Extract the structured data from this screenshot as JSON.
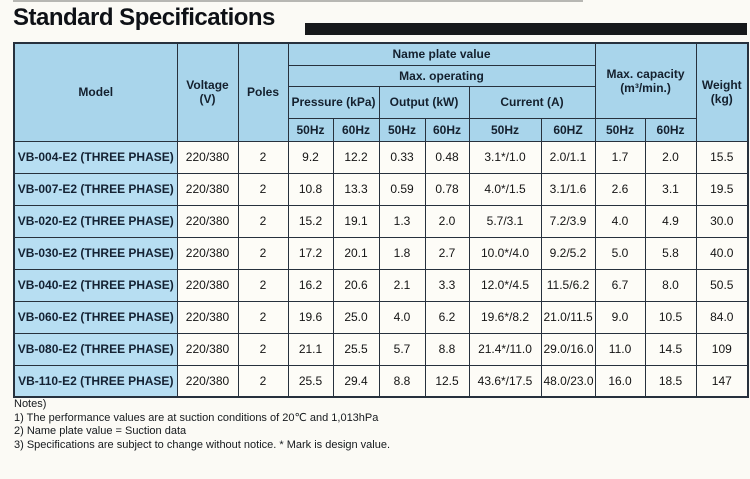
{
  "title": "Standard Specifications",
  "table": {
    "columns": {
      "model": "Model",
      "voltage": "Voltage\n(V)",
      "poles": "Poles",
      "name_plate_group": "Name plate value",
      "max_operating_group": "Max. operating",
      "pressure": "Pressure (kPa)",
      "output": "Output (kW)",
      "current": "Current (A)",
      "max_capacity": "Max. capacity\n(m³/min.)",
      "weight": "Weight\n(kg)",
      "pressure_50hz": "50Hz",
      "pressure_60hz": "60Hz",
      "output_50hz": "50Hz",
      "output_60hz": "60Hz",
      "current_50hz": "50Hz",
      "current_60hz": "60HZ",
      "capacity_50hz": "50Hz",
      "capacity_60hz": "60Hz"
    },
    "rows": [
      [
        "VB-004-E2 (THREE PHASE)",
        "220/380",
        "2",
        "9.2",
        "12.2",
        "0.33",
        "0.48",
        "3.1*/1.0",
        "2.0/1.1",
        "1.7",
        "2.0",
        "15.5"
      ],
      [
        "VB-007-E2 (THREE PHASE)",
        "220/380",
        "2",
        "10.8",
        "13.3",
        "0.59",
        "0.78",
        "4.0*/1.5",
        "3.1/1.6",
        "2.6",
        "3.1",
        "19.5"
      ],
      [
        "VB-020-E2 (THREE PHASE)",
        "220/380",
        "2",
        "15.2",
        "19.1",
        "1.3",
        "2.0",
        "5.7/3.1",
        "7.2/3.9",
        "4.0",
        "4.9",
        "30.0"
      ],
      [
        "VB-030-E2 (THREE PHASE)",
        "220/380",
        "2",
        "17.2",
        "20.1",
        "1.8",
        "2.7",
        "10.0*/4.0",
        "9.2/5.2",
        "5.0",
        "5.8",
        "40.0"
      ],
      [
        "VB-040-E2 (THREE PHASE)",
        "220/380",
        "2",
        "16.2",
        "20.6",
        "2.1",
        "3.3",
        "12.0*/4.5",
        "11.5/6.2",
        "6.7",
        "8.0",
        "50.5"
      ],
      [
        "VB-060-E2 (THREE PHASE)",
        "220/380",
        "2",
        "19.6",
        "25.0",
        "4.0",
        "6.2",
        "19.6*/8.2",
        "21.0/11.5",
        "9.0",
        "10.5",
        "84.0"
      ],
      [
        "VB-080-E2 (THREE PHASE)",
        "220/380",
        "2",
        "21.1",
        "25.5",
        "5.7",
        "8.8",
        "21.4*/11.0",
        "29.0/16.0",
        "11.0",
        "14.5",
        "109"
      ],
      [
        "VB-110-E2 (THREE PHASE)",
        "220/380",
        "2",
        "25.5",
        "29.4",
        "8.8",
        "12.5",
        "43.6*/17.5",
        "48.0/23.0",
        "16.0",
        "18.5",
        "147"
      ]
    ]
  },
  "notes": {
    "label": "Notes)",
    "items": [
      "1) The performance values are at suction conditions of 20℃ and 1,013hPa",
      "2) Name plate value = Suction data",
      "3) Specifications are subject to change without notice. * Mark is design value."
    ]
  },
  "colors": {
    "header_blue": "#a9d5eb",
    "model_blue": "#b7def2",
    "border": "#27313d",
    "title_bar": "#17191b",
    "page_bg": "#fbfaf5",
    "cell_bg": "#fdfcf7"
  }
}
